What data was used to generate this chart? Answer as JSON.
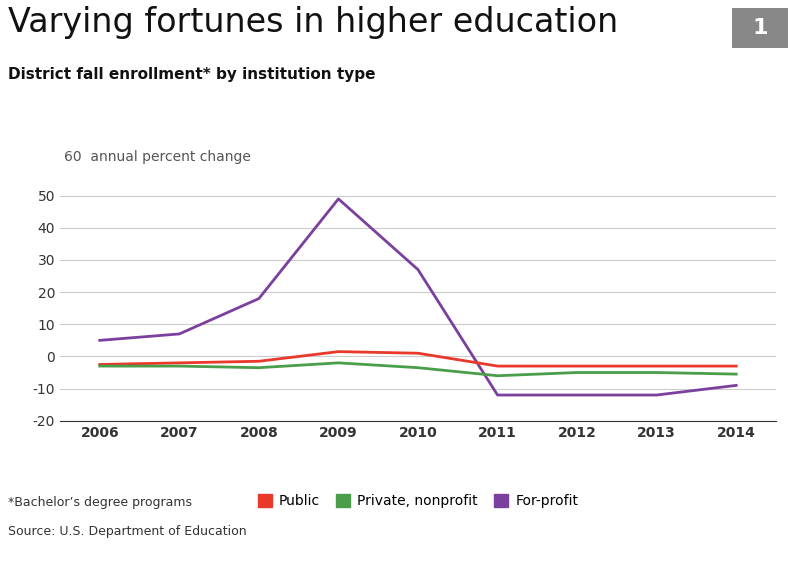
{
  "title": "Varying fortunes in higher education",
  "subtitle": "District fall enrollment* by institution type",
  "ylabel": "60  annual percent change",
  "footnote1": "*Bachelor’s degree programs",
  "footnote2": "Source: U.S. Department of Education",
  "badge": "1",
  "years": [
    2006,
    2007,
    2008,
    2009,
    2010,
    2011,
    2012,
    2013,
    2014
  ],
  "public": [
    -2.5,
    -2.0,
    -1.5,
    1.5,
    1.0,
    -3.0,
    -3.0,
    -3.0,
    -3.0
  ],
  "private_nonprofit": [
    -3.0,
    -3.0,
    -3.5,
    -2.0,
    -3.5,
    -6.0,
    -5.0,
    -5.0,
    -5.5
  ],
  "for_profit": [
    5.0,
    7.0,
    18.0,
    49.0,
    27.0,
    -12.0,
    -12.0,
    -12.0,
    -9.0
  ],
  "public_color": "#e8392a",
  "private_color": "#4a9e4a",
  "forprofit_color": "#7b3f9e",
  "background_color": "#ffffff",
  "ylim": [
    -20,
    62
  ],
  "yticks": [
    -20,
    -10,
    0,
    10,
    20,
    30,
    40,
    50
  ],
  "grid_color": "#cccccc",
  "title_fontsize": 24,
  "subtitle_fontsize": 11,
  "legend_fontsize": 10,
  "axis_fontsize": 10,
  "line_width": 2.0
}
